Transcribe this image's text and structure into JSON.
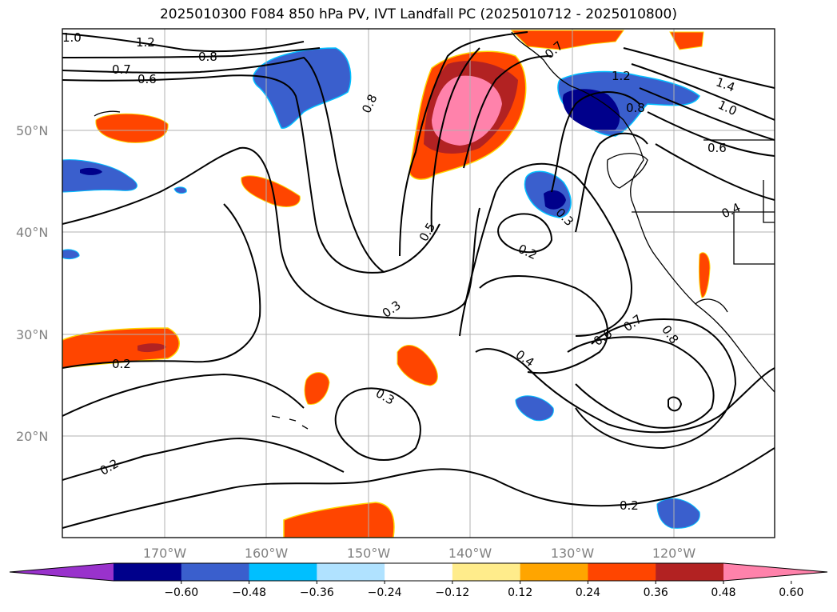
{
  "title": "2025010300 F084 850 hPa PV, IVT Landfall PC (2025010712 - 2025010800)",
  "map": {
    "lat_labels": [
      "50°N",
      "40°N",
      "30°N",
      "20°N"
    ],
    "lon_labels": [
      "170°W",
      "160°W",
      "150°W",
      "140°W",
      "130°W",
      "120°W"
    ],
    "contour_labels": [
      "1.0",
      "1.2",
      "0.8",
      "0.7",
      "0.6",
      "0.8",
      "0.5",
      "0.3",
      "0.2",
      "0.3",
      "0.2",
      "0.2",
      "0.4",
      "0.6",
      "0.7",
      "0.8",
      "0.2",
      "0.3",
      "1.4",
      "1.0",
      "0.6",
      "0.4",
      "0.8",
      "1.2",
      "0.7"
    ]
  },
  "colorbar": {
    "colors": [
      "#9932cc",
      "#00008b",
      "#3a5fcd",
      "#00bfff",
      "#b0e2ff",
      "#ffffff",
      "#ffec8b",
      "#ffa500",
      "#ff4500",
      "#b22222",
      "#ff82ab"
    ],
    "ticks": [
      "−0.60",
      "−0.48",
      "−0.36",
      "−0.24",
      "−0.12",
      "0.12",
      "0.24",
      "0.36",
      "0.48",
      "0.60"
    ]
  }
}
